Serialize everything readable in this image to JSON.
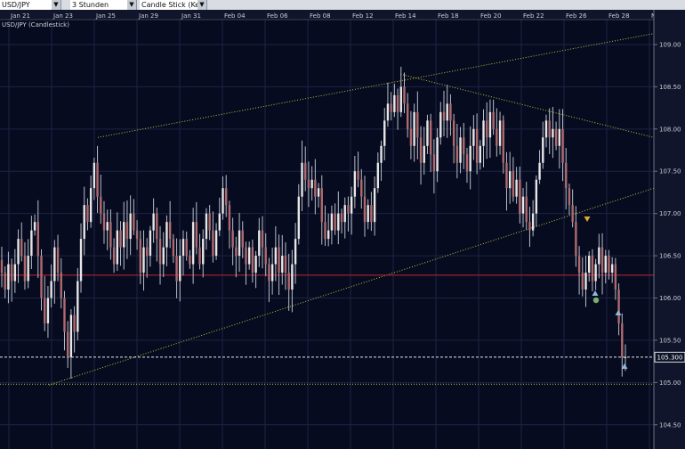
{
  "toolbar": {
    "symbol": "USD/JPY",
    "interval": "3 Stunden",
    "chart_style": "Candle Stick (Kerze"
  },
  "chart_data": {
    "type": "candlestick",
    "title": "USD/JPY (Candlestick)",
    "x_tick_labels": [
      "Jan 21",
      "Jan 23",
      "Jan 25",
      "Jan 29",
      "Jan 31",
      "Feb 04",
      "Feb 06",
      "Feb 08",
      "Feb 12",
      "Feb 14",
      "Feb 18",
      "Feb 20",
      "Feb 22",
      "Feb 26",
      "Feb 28",
      "M"
    ],
    "y_ticks": [
      104.5,
      105.0,
      105.5,
      106.0,
      106.5,
      107.0,
      107.5,
      108.0,
      108.5,
      109.0
    ],
    "y_tick_labels": [
      "104.50",
      "105.00",
      "105.50",
      "106.00",
      "106.50",
      "107.00",
      "107.50",
      "108.00",
      "108.50",
      "109.00"
    ],
    "ylim": [
      104.35,
      109.2
    ],
    "grid": true,
    "current_price": 105.3,
    "current_price_label": "105.300",
    "up_color": "#e6e6e6",
    "down_color": "#b06a6e",
    "trendline_color": "#bcc43b",
    "support_color": "#c0262f",
    "closes": [
      106.3,
      106.1,
      106.4,
      106.2,
      106.4,
      106.7,
      106.5,
      106.2,
      106.5,
      106.8,
      106.9,
      106.5,
      106.0,
      105.7,
      106.0,
      106.2,
      106.6,
      106.3,
      106.0,
      105.6,
      105.3,
      105.8,
      105.6,
      106.2,
      106.7,
      107.1,
      106.9,
      107.3,
      107.6,
      107.2,
      107.0,
      106.8,
      106.9,
      106.6,
      106.4,
      106.8,
      106.6,
      106.9,
      106.7,
      107.0,
      106.8,
      106.7,
      106.3,
      106.6,
      106.5,
      106.8,
      107.0,
      106.7,
      106.4,
      106.6,
      106.9,
      106.7,
      106.5,
      106.2,
      106.5,
      106.7,
      106.5,
      106.4,
      106.9,
      106.6,
      106.4,
      106.7,
      107.0,
      106.8,
      106.5,
      106.8,
      107.0,
      107.3,
      107.1,
      106.8,
      106.6,
      106.5,
      106.8,
      106.6,
      106.4,
      106.6,
      106.3,
      106.5,
      106.8,
      106.6,
      106.4,
      106.2,
      106.4,
      106.6,
      106.3,
      106.5,
      106.3,
      106.1,
      106.4,
      106.7,
      107.2,
      107.6,
      107.4,
      107.3,
      107.4,
      107.2,
      107.3,
      106.9,
      106.7,
      106.8,
      107.0,
      106.8,
      107.0,
      106.9,
      107.1,
      107.0,
      107.2,
      107.5,
      107.4,
      107.2,
      106.9,
      107.1,
      106.9,
      107.3,
      107.6,
      107.8,
      108.1,
      108.3,
      108.2,
      108.4,
      108.2,
      108.5,
      108.3,
      108.0,
      107.8,
      108.2,
      107.9,
      107.6,
      107.8,
      108.1,
      107.7,
      107.5,
      107.9,
      108.2,
      108.1,
      108.3,
      108.1,
      107.8,
      107.6,
      107.9,
      107.7,
      107.5,
      107.8,
      108.0,
      107.6,
      107.8,
      108.1,
      107.9,
      108.2,
      108.0,
      107.8,
      108.1,
      107.6,
      107.3,
      107.5,
      107.2,
      107.4,
      107.0,
      107.2,
      106.9,
      106.8,
      107.0,
      107.4,
      107.6,
      107.9,
      108.1,
      107.9,
      108.0,
      107.8,
      108.0,
      107.6,
      107.3,
      107.1,
      106.9,
      106.5,
      106.3,
      106.1,
      106.3,
      106.5,
      106.2,
      106.4,
      106.6,
      106.3,
      106.5,
      106.3,
      106.4,
      106.1,
      105.7,
      105.3,
      105.3
    ]
  }
}
